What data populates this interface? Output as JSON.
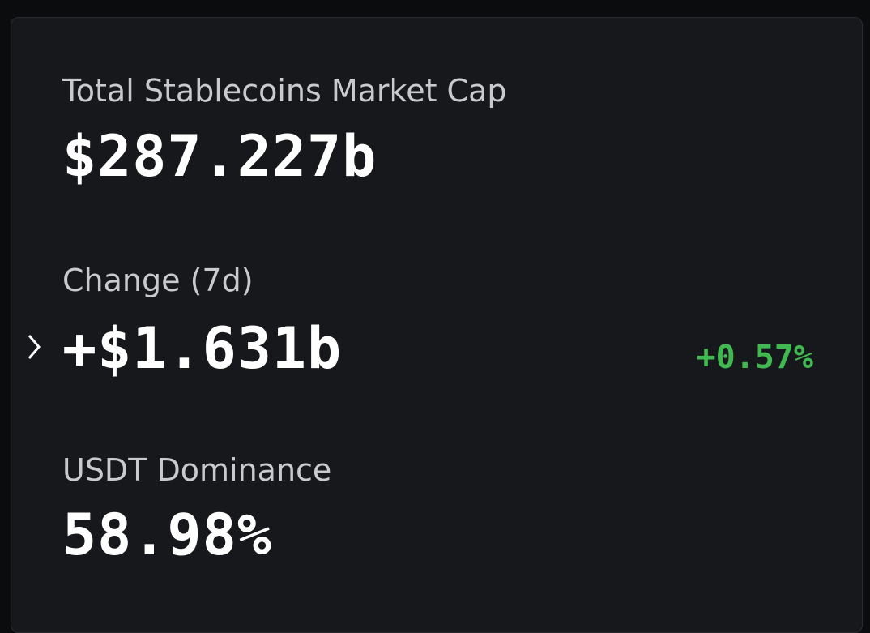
{
  "stats": [
    {
      "label": "Total Stablecoins Market Cap",
      "value": "$287.227b"
    },
    {
      "label": "Change (7d)",
      "value": "+$1.631b",
      "change": "+0.57%"
    },
    {
      "label": "USDT Dominance",
      "value": "58.98%"
    }
  ]
}
